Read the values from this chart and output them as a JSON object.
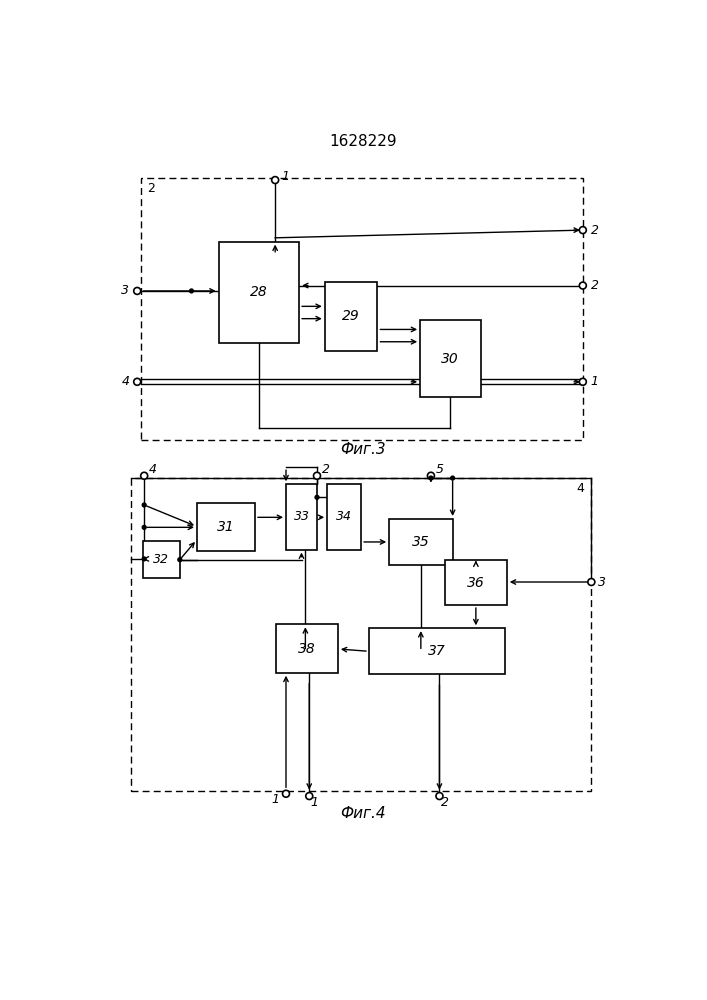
{
  "title": "1628229",
  "fig3_label": "Фиг.3",
  "fig4_label": "Фиг.4",
  "background": "#ffffff",
  "line_color": "#000000"
}
